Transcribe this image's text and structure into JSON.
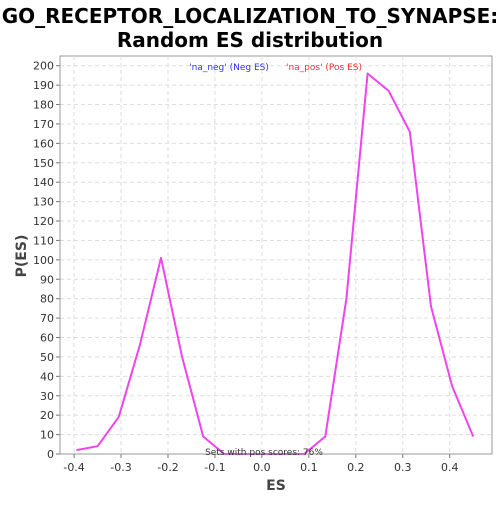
{
  "chart_data": {
    "type": "line",
    "title_lines": [
      "GO_RECEPTOR_LOCALIZATION_TO_SYNAPSE:",
      "Random ES distribution"
    ],
    "xlabel": "ES",
    "ylabel": "P(ES)",
    "xlim": [
      -0.43,
      0.49
    ],
    "ylim": [
      0,
      205
    ],
    "x_ticks": [
      -0.4,
      -0.3,
      -0.2,
      -0.1,
      0.0,
      0.1,
      0.2,
      0.3,
      0.4
    ],
    "x_tick_labels": [
      "-0.4",
      "-0.3",
      "-0.2",
      "-0.1",
      "0.0",
      "0.1",
      "0.2",
      "0.3",
      "0.4"
    ],
    "y_ticks": [
      0,
      10,
      20,
      30,
      40,
      50,
      60,
      70,
      80,
      90,
      100,
      110,
      120,
      130,
      140,
      150,
      160,
      170,
      180,
      190,
      200
    ],
    "y_tick_labels": [
      "0",
      "10",
      "20",
      "30",
      "40",
      "50",
      "60",
      "70",
      "80",
      "90",
      "100",
      "110",
      "120",
      "130",
      "140",
      "150",
      "160",
      "170",
      "180",
      "190",
      "200"
    ],
    "grid": true,
    "legend": [
      {
        "label": "'na_neg' (Neg ES)",
        "color": "#3333ee"
      },
      {
        "label": "'na_pos' (Pos ES)",
        "color": "#ee3333"
      }
    ],
    "legend_position": "top-center",
    "annotation": "Sets with pos scores: 76%",
    "line_color": "#ee44ee",
    "series": [
      {
        "x": [
          -0.395,
          -0.35,
          -0.305,
          -0.26,
          -0.215,
          -0.17,
          -0.125,
          -0.08,
          0.005,
          0.09,
          0.135,
          0.18,
          0.225,
          0.27,
          0.315,
          0.36,
          0.405,
          0.45
        ],
        "values": [
          2,
          4,
          19,
          56,
          101,
          50,
          9,
          0,
          0,
          0,
          9,
          80,
          196,
          187,
          166,
          76,
          35,
          9
        ]
      }
    ]
  }
}
